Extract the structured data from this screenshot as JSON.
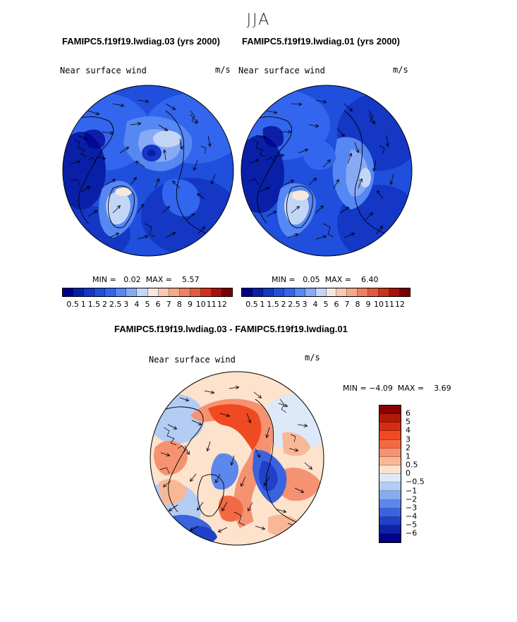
{
  "season": "JJA",
  "panels": [
    {
      "title": "FAMIPC5.f19f19.lwdiag.03 (yrs 2000)",
      "variable": "Near surface wind",
      "units": "m/s",
      "min_label": "MIN =",
      "min": "0.02",
      "max_label": "MAX =",
      "max": "5.57"
    },
    {
      "title": "FAMIPC5.f19f19.lwdiag.01 (yrs 2000)",
      "variable": "Near surface wind",
      "units": "m/s",
      "min_label": "MIN =",
      "min": "0.05",
      "max_label": "MAX =",
      "max": "6.40"
    }
  ],
  "diff_panel": {
    "title": "FAMIPC5.f19f19.lwdiag.03 - FAMIPC5.f19f19.lwdiag.01",
    "variable": "Near surface wind",
    "units": "m/s",
    "min_label": "MIN =",
    "min": "−4.09",
    "max_label": "MAX =",
    "max": "3.69"
  },
  "chart_data": [
    {
      "type": "heatmap",
      "projection": "polar stereographic (north)",
      "field": "Near surface wind",
      "units": "m/s",
      "case": "FAMIPC5.f19f19.lwdiag.03",
      "years": "2000",
      "min": 0.02,
      "max": 5.57,
      "levels": [
        "0.5",
        "1",
        "1.5",
        "2",
        "2.5",
        "3",
        "4",
        "5",
        "6",
        "7",
        "8",
        "9",
        "10",
        "11",
        "12"
      ],
      "colors": [
        "#00008b",
        "#0a1fa8",
        "#1437c6",
        "#1f4fdc",
        "#3366ee",
        "#5588f2",
        "#88aaf5",
        "#c4d6f7",
        "#f8e8dc",
        "#f7c9b2",
        "#f4a988",
        "#ef8060",
        "#e65a3c",
        "#cf3019",
        "#a8120a",
        "#7a0000"
      ]
    },
    {
      "type": "heatmap",
      "projection": "polar stereographic (north)",
      "field": "Near surface wind",
      "units": "m/s",
      "case": "FAMIPC5.f19f19.lwdiag.01",
      "years": "2000",
      "min": 0.05,
      "max": 6.4,
      "levels": [
        "0.5",
        "1",
        "1.5",
        "2",
        "2.5",
        "3",
        "4",
        "5",
        "6",
        "7",
        "8",
        "9",
        "10",
        "11",
        "12"
      ],
      "colors": [
        "#00008b",
        "#0a1fa8",
        "#1437c6",
        "#1f4fdc",
        "#3366ee",
        "#5588f2",
        "#88aaf5",
        "#c4d6f7",
        "#f8e8dc",
        "#f7c9b2",
        "#f4a988",
        "#ef8060",
        "#e65a3c",
        "#cf3019",
        "#a8120a",
        "#7a0000"
      ]
    },
    {
      "type": "heatmap",
      "projection": "polar stereographic (north)",
      "field": "Near surface wind difference",
      "units": "m/s",
      "case": "FAMIPC5.f19f19.lwdiag.03 - FAMIPC5.f19f19.lwdiag.01",
      "min": -4.09,
      "max": 3.69,
      "levels": [
        "6",
        "5",
        "4",
        "3",
        "2",
        "1",
        "0.5",
        "0",
        "−0.5",
        "−1",
        "−2",
        "−3",
        "−4",
        "−5",
        "−6"
      ],
      "colors": [
        "#8b0000",
        "#b01a0a",
        "#d42e12",
        "#f04a22",
        "#f26a44",
        "#f59272",
        "#f8b898",
        "#fde2cc",
        "#dde9f8",
        "#b3ccf3",
        "#88aaf0",
        "#5d87ea",
        "#3a63de",
        "#1f40c8",
        "#0f22a6",
        "#00008b"
      ]
    }
  ]
}
